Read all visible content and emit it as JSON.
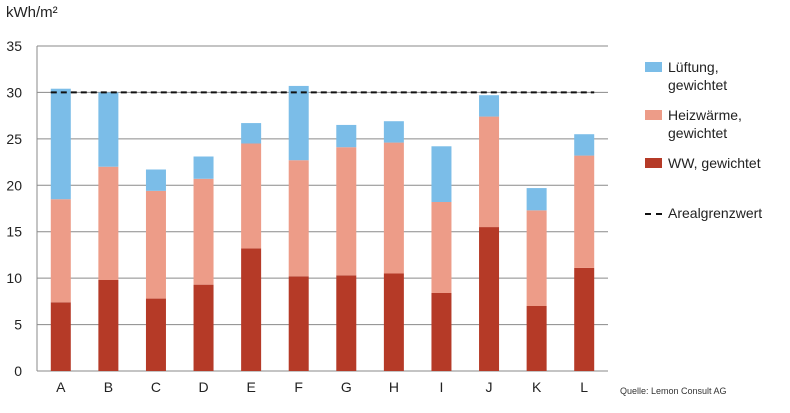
{
  "chart_data": {
    "type": "bar",
    "stacked": true,
    "unit_label": "kWh/m²",
    "categories": [
      "A",
      "B",
      "C",
      "D",
      "E",
      "F",
      "G",
      "H",
      "I",
      "J",
      "K",
      "L"
    ],
    "series": [
      {
        "name": "WW, gewichtet",
        "color": "#b53a27",
        "values": [
          7.4,
          9.8,
          7.8,
          9.3,
          13.2,
          10.2,
          10.3,
          10.5,
          8.4,
          15.5,
          7.0,
          11.1
        ]
      },
      {
        "name": "Heizwärme, gewichtet",
        "color": "#ed9c88",
        "values": [
          11.1,
          12.2,
          11.6,
          11.4,
          11.3,
          12.5,
          13.8,
          14.1,
          9.8,
          11.9,
          10.3,
          12.1
        ]
      },
      {
        "name": "Lüftung, gewichtet",
        "color": "#7bbde8",
        "values": [
          11.9,
          8.0,
          2.3,
          2.4,
          2.2,
          8.0,
          2.4,
          2.3,
          6.0,
          2.3,
          2.4,
          2.3
        ]
      }
    ],
    "reference_line": {
      "name": "Arealgrenzwert",
      "value": 30,
      "style": "dashed",
      "color": "#111111"
    },
    "ylim": [
      0,
      35
    ],
    "yticks": [
      0,
      5,
      10,
      15,
      20,
      25,
      30,
      35
    ],
    "grid": "horizontal",
    "legend_position": "right",
    "legend_order": [
      "Lüftung, gewichtet",
      "Heizwärme, gewichtet",
      "WW, gewichtet",
      "Arealgrenzwert"
    ],
    "legend_lines": {
      "Lüftung, gewichtet": [
        "Lüftung,",
        "gewichtet"
      ],
      "Heizwärme, gewichtet": [
        "Heizwärme,",
        "gewichtet"
      ],
      "WW, gewichtet": [
        "WW, gewichtet"
      ],
      "Arealgrenzwert": [
        "Arealgrenzwert"
      ]
    },
    "source": "Quelle: Lemon Consult AG"
  }
}
